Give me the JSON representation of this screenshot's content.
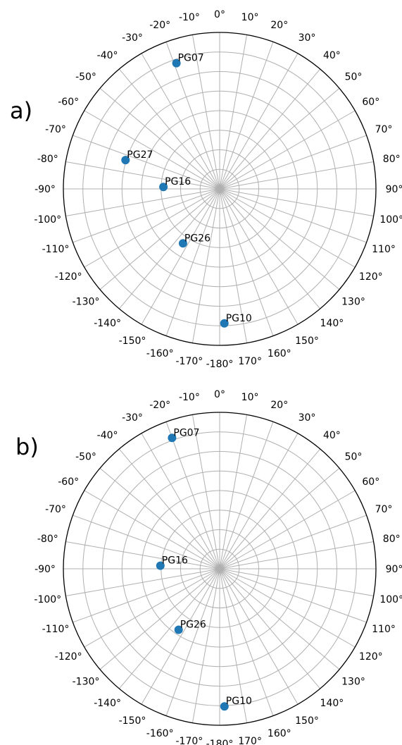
{
  "chart_data": [
    {
      "type": "scatter",
      "panel_label": "a)",
      "polar": true,
      "theta_unit": "deg",
      "zero_location": "top",
      "direction": "clockwise",
      "theta_ticks": [
        "0°",
        "10°",
        "20°",
        "30°",
        "40°",
        "50°",
        "60°",
        "70°",
        "80°",
        "90°",
        "100°",
        "110°",
        "120°",
        "130°",
        "140°",
        "150°",
        "160°",
        "170°",
        "-180°",
        "-170°",
        "-160°",
        "-150°",
        "-140°",
        "-130°",
        "-120°",
        "-110°",
        "-100°",
        "-90°",
        "-80°",
        "-70°",
        "-60°",
        "-50°",
        "-40°",
        "-30°",
        "-20°",
        "-10°"
      ],
      "radial_rings": 8,
      "radial_labels": false,
      "grid": true,
      "marker_color": "#1f77b4",
      "points": [
        {
          "label": "PG07",
          "azimuth": -19,
          "radius": 0.85
        },
        {
          "label": "PG27",
          "azimuth": -73,
          "radius": 0.63
        },
        {
          "label": "PG16",
          "azimuth": -88,
          "radius": 0.36
        },
        {
          "label": "PG26",
          "azimuth": -146,
          "radius": 0.42
        },
        {
          "label": "PG10",
          "azimuth": 178,
          "radius": 0.86
        }
      ]
    },
    {
      "type": "scatter",
      "panel_label": "b)",
      "polar": true,
      "theta_unit": "deg",
      "zero_location": "top",
      "direction": "clockwise",
      "theta_ticks": [
        "0°",
        "10°",
        "20°",
        "30°",
        "40°",
        "50°",
        "60°",
        "70°",
        "80°",
        "90°",
        "100°",
        "110°",
        "120°",
        "130°",
        "140°",
        "150°",
        "160°",
        "170°",
        "-180°",
        "-170°",
        "-160°",
        "-150°",
        "-140°",
        "-130°",
        "-120°",
        "-110°",
        "-100°",
        "-90°",
        "-80°",
        "-70°",
        "-60°",
        "-50°",
        "-40°",
        "-30°",
        "-20°",
        "-10°"
      ],
      "radial_rings": 8,
      "radial_labels": false,
      "grid": true,
      "marker_color": "#1f77b4",
      "points": [
        {
          "label": "PG07",
          "azimuth": -20,
          "radius": 0.89
        },
        {
          "label": "PG16",
          "azimuth": -87,
          "radius": 0.38
        },
        {
          "label": "PG26",
          "azimuth": -146,
          "radius": 0.47
        },
        {
          "label": "PG10",
          "azimuth": 178,
          "radius": 0.88
        }
      ]
    }
  ]
}
